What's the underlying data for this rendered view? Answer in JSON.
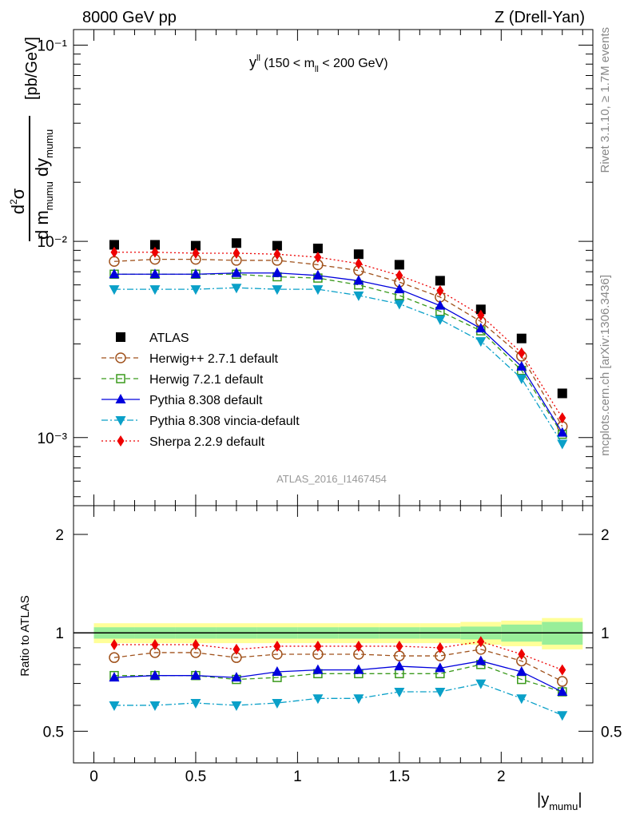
{
  "header": {
    "left": "8000 GeV pp",
    "right": "Z (Drell-Yan)",
    "subtitle_main": "y",
    "subtitle_sup": "ll",
    "subtitle_rest": " (150 < m",
    "subtitle_sub": "ll",
    "subtitle_end": " < 200 GeV)"
  },
  "side_text": {
    "rivet": "Rivet 3.1.10, ≥ 1.7M events",
    "mcplots": "mcplots.cern.ch [arXiv:1306.3436]"
  },
  "watermark": "ATLAS_2016_I1467454",
  "axes": {
    "ylabel_units": "[pb/GeV]",
    "ratio_ylabel": "Ratio to ATLAS",
    "xlabel_main": "|y",
    "xlabel_sub": "mumu",
    "xlabel_end": "|",
    "main_ytick_labels": [
      "10⁻³",
      "10⁻²",
      "10⁻¹"
    ],
    "ratio_ytick_labels": [
      "0.5",
      "1",
      "2"
    ],
    "xtick_labels": [
      "0",
      "0.5",
      "1",
      "1.5",
      "2"
    ]
  },
  "legend": [
    {
      "label": "ATLAS",
      "color": "#000000",
      "marker": "square",
      "line": "none"
    },
    {
      "label": "Herwig++ 2.7.1 default",
      "color": "#a0521c",
      "marker": "open-circle",
      "line": "dashed"
    },
    {
      "label": "Herwig 7.2.1 default",
      "color": "#3a9a1c",
      "marker": "open-square",
      "line": "dashed"
    },
    {
      "label": "Pythia 8.308 default",
      "color": "#0000dd",
      "marker": "triangle-up",
      "line": "solid"
    },
    {
      "label": "Pythia 8.308 vincia-default",
      "color": "#0aa0c8",
      "marker": "triangle-down",
      "line": "dashdot"
    },
    {
      "label": "Sherpa 2.2.9 default",
      "color": "#ee0000",
      "marker": "diamond",
      "line": "dotted"
    }
  ],
  "chart_data": {
    "type": "line",
    "x": [
      0.1,
      0.3,
      0.5,
      0.7,
      0.9,
      1.1,
      1.3,
      1.5,
      1.7,
      1.9,
      2.1,
      2.3
    ],
    "xlim": [
      -0.1,
      2.45
    ],
    "ylim": [
      0.00045,
      0.12
    ],
    "yscale": "log",
    "ratio_ylim": [
      0.4,
      2.45
    ],
    "ratio_yscale": "log",
    "series": [
      {
        "name": "ATLAS",
        "values": [
          0.0096,
          0.0096,
          0.0095,
          0.0098,
          0.0095,
          0.0092,
          0.0086,
          0.0076,
          0.0063,
          0.0045,
          0.0032,
          0.00168
        ]
      },
      {
        "name": "Herwig++ 2.7.1 default",
        "values": [
          0.0079,
          0.0081,
          0.0081,
          0.008,
          0.008,
          0.0076,
          0.0071,
          0.0062,
          0.0052,
          0.0039,
          0.0026,
          0.00114
        ]
      },
      {
        "name": "Herwig 7.2.1 default",
        "values": [
          0.0068,
          0.0068,
          0.0068,
          0.0068,
          0.0066,
          0.0065,
          0.006,
          0.0053,
          0.0044,
          0.0035,
          0.0022,
          0.00104
        ]
      },
      {
        "name": "Pythia 8.308 default",
        "values": [
          0.0068,
          0.0068,
          0.0068,
          0.0069,
          0.0069,
          0.0067,
          0.0063,
          0.0057,
          0.0047,
          0.0036,
          0.0023,
          0.00106
        ]
      },
      {
        "name": "Pythia 8.308 vincia-default",
        "values": [
          0.0057,
          0.0057,
          0.0057,
          0.0058,
          0.0057,
          0.0057,
          0.0053,
          0.0048,
          0.004,
          0.0031,
          0.002,
          0.00093
        ]
      },
      {
        "name": "Sherpa 2.2.9 default",
        "values": [
          0.0088,
          0.0088,
          0.0087,
          0.0087,
          0.0086,
          0.0083,
          0.0077,
          0.0067,
          0.0056,
          0.0042,
          0.0027,
          0.00126
        ]
      }
    ],
    "ratio_series": [
      {
        "name": "Herwig++ 2.7.1 default",
        "values": [
          0.84,
          0.87,
          0.87,
          0.84,
          0.86,
          0.86,
          0.86,
          0.85,
          0.85,
          0.89,
          0.82,
          0.71
        ]
      },
      {
        "name": "Herwig 7.2.1 default",
        "values": [
          0.74,
          0.74,
          0.74,
          0.72,
          0.73,
          0.75,
          0.75,
          0.75,
          0.75,
          0.8,
          0.72,
          0.66
        ]
      },
      {
        "name": "Pythia 8.308 default",
        "values": [
          0.73,
          0.74,
          0.74,
          0.73,
          0.76,
          0.77,
          0.77,
          0.79,
          0.78,
          0.82,
          0.76,
          0.66
        ]
      },
      {
        "name": "Pythia 8.308 vincia-default",
        "values": [
          0.6,
          0.6,
          0.61,
          0.6,
          0.61,
          0.63,
          0.63,
          0.66,
          0.66,
          0.7,
          0.63,
          0.56
        ]
      },
      {
        "name": "Sherpa 2.2.9 default",
        "values": [
          0.92,
          0.92,
          0.92,
          0.89,
          0.91,
          0.91,
          0.91,
          0.91,
          0.9,
          0.94,
          0.86,
          0.77
        ]
      }
    ],
    "ratio_band": {
      "x_edges": [
        0.0,
        0.2,
        0.4,
        0.6,
        0.8,
        1.0,
        1.2,
        1.4,
        1.6,
        1.8,
        2.0,
        2.2,
        2.4
      ],
      "stat_sys": [
        0.07,
        0.07,
        0.07,
        0.07,
        0.07,
        0.07,
        0.07,
        0.07,
        0.07,
        0.08,
        0.09,
        0.11
      ],
      "stat": [
        0.04,
        0.04,
        0.04,
        0.04,
        0.04,
        0.04,
        0.04,
        0.04,
        0.04,
        0.045,
        0.06,
        0.08
      ]
    }
  }
}
